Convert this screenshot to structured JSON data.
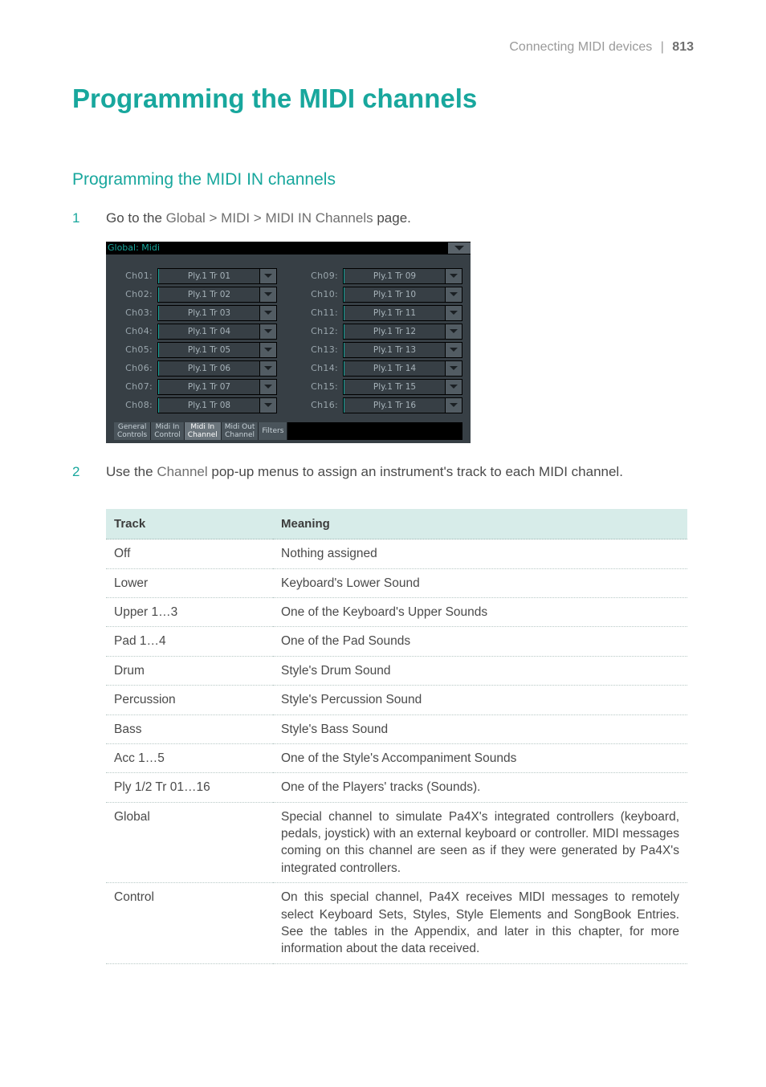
{
  "running_head": {
    "section": "Connecting MIDI devices",
    "page": "813"
  },
  "main_title": "Programming the MIDI channels",
  "sub_title": "Programming the MIDI IN channels",
  "steps": {
    "s1": {
      "num": "1",
      "pre": "Go to the ",
      "emph": "Global > MIDI > MIDI IN Channels",
      "post": " page."
    },
    "s2": {
      "num": "2",
      "pre": "Use the ",
      "emph": "Channel",
      "post": " pop-up menus to assign an instrument's track to each MIDI channel."
    }
  },
  "device": {
    "title": "Global: Midi",
    "left": [
      {
        "label": "Ch01:",
        "value": "Ply.1 Tr 01"
      },
      {
        "label": "Ch02:",
        "value": "Ply.1 Tr 02"
      },
      {
        "label": "Ch03:",
        "value": "Ply.1 Tr 03"
      },
      {
        "label": "Ch04:",
        "value": "Ply.1 Tr 04"
      },
      {
        "label": "Ch05:",
        "value": "Ply.1 Tr 05"
      },
      {
        "label": "Ch06:",
        "value": "Ply.1 Tr 06"
      },
      {
        "label": "Ch07:",
        "value": "Ply.1 Tr 07"
      },
      {
        "label": "Ch08:",
        "value": "Ply.1 Tr 08"
      }
    ],
    "right": [
      {
        "label": "Ch09:",
        "value": "Ply.1 Tr 09"
      },
      {
        "label": "Ch10:",
        "value": "Ply.1 Tr 10"
      },
      {
        "label": "Ch11:",
        "value": "Ply.1 Tr 11"
      },
      {
        "label": "Ch12:",
        "value": "Ply.1 Tr 12"
      },
      {
        "label": "Ch13:",
        "value": "Ply.1 Tr 13"
      },
      {
        "label": "Ch14:",
        "value": "Ply.1 Tr 14"
      },
      {
        "label": "Ch15:",
        "value": "Ply.1 Tr 15"
      },
      {
        "label": "Ch16:",
        "value": "Ply.1 Tr 16"
      }
    ],
    "tabs": [
      {
        "label": "General\nControls",
        "active": false
      },
      {
        "label": "Midi In\nControl",
        "active": false
      },
      {
        "label": "Midi In\nChannel",
        "active": true
      },
      {
        "label": "Midi Out\nChannel",
        "active": false
      },
      {
        "label": "Filters",
        "active": false
      }
    ]
  },
  "table": {
    "head": {
      "track": "Track",
      "meaning": "Meaning"
    },
    "rows": [
      {
        "track": "Off",
        "meaning": "Nothing assigned"
      },
      {
        "track": "Lower",
        "meaning": "Keyboard's Lower Sound"
      },
      {
        "track": "Upper 1…3",
        "meaning": "One of the Keyboard's Upper Sounds"
      },
      {
        "track": "Pad 1…4",
        "meaning": "One of the Pad Sounds"
      },
      {
        "track": "Drum",
        "meaning": "Style's Drum Sound"
      },
      {
        "track": "Percussion",
        "meaning": "Style's Percussion Sound"
      },
      {
        "track": "Bass",
        "meaning": "Style's Bass Sound"
      },
      {
        "track": "Acc 1…5",
        "meaning": "One of the Style's Accompaniment Sounds"
      },
      {
        "track": "Ply 1/2 Tr 01…16",
        "meaning": "One of the Players' tracks (Sounds)."
      },
      {
        "track": "Global",
        "meaning": "Special channel to simulate Pa4X's integrated controllers (keyboard, pedals, joystick) with an external keyboard or controller. MIDI messages coming on this channel are seen as if they were generated by Pa4X's integrated controllers."
      },
      {
        "track": "Control",
        "meaning": "On this special channel, Pa4X receives MIDI messages to remotely select Keyboard Sets, Styles, Style Elements and SongBook Entries. See the tables in the Appendix, and later in this chapter, for more information about the data received."
      }
    ]
  },
  "colors": {
    "accent": "#18a79d",
    "device_bg": "#373f45",
    "device_field_border": "#000000",
    "device_tab_bg": "#4a545b",
    "device_tab_active_bg": "#6b757c",
    "table_head_bg": "#d7ece9"
  }
}
